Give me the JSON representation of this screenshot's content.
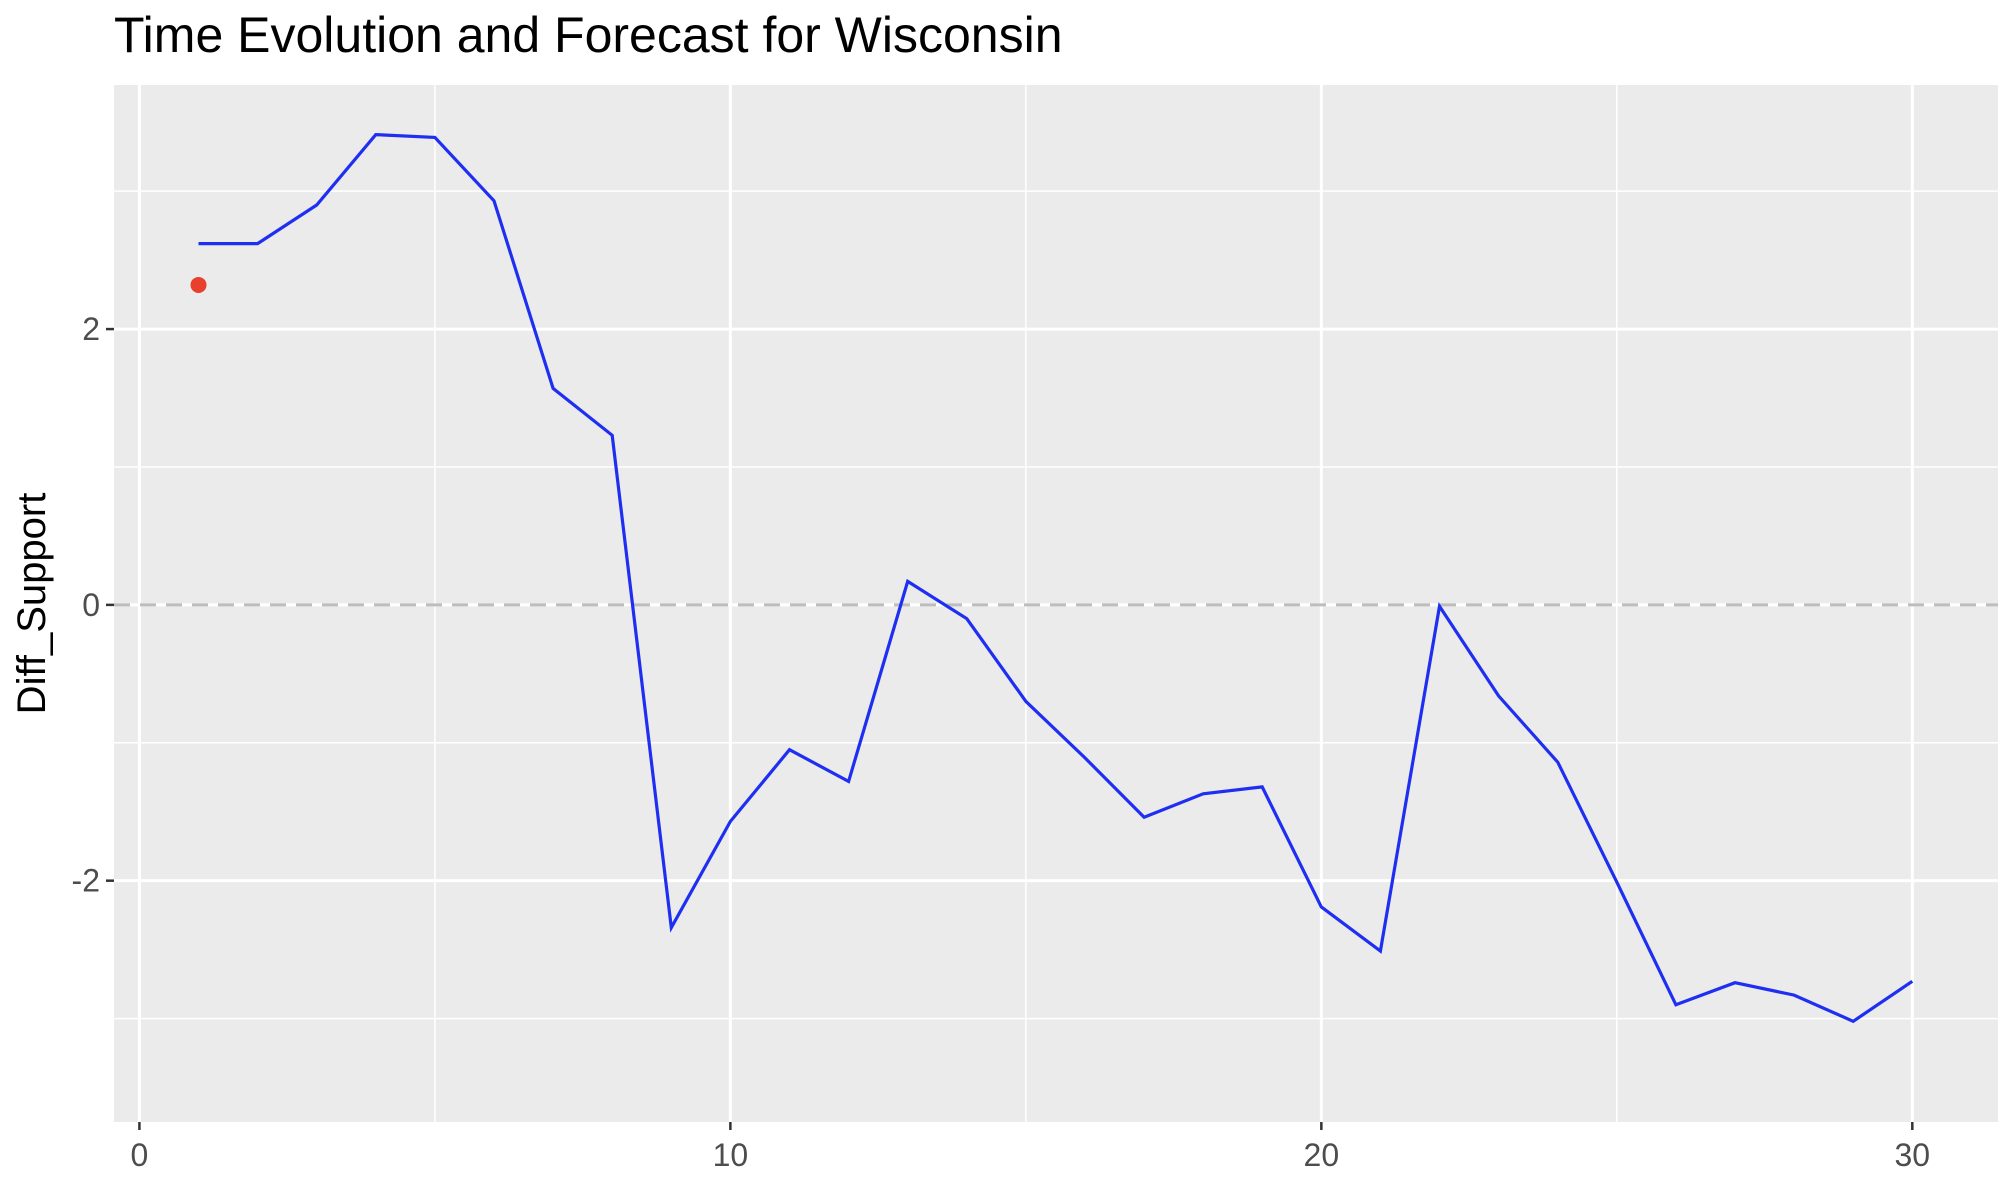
{
  "chart_data": {
    "type": "line",
    "title": "Time Evolution and Forecast for Wisconsin",
    "xlabel": "",
    "ylabel": "Diff_Support",
    "xlim": [
      -0.43,
      31.45
    ],
    "ylim": [
      -3.75,
      3.77
    ],
    "x_ticks": [
      0,
      10,
      20,
      30
    ],
    "y_ticks": [
      -2,
      0,
      2
    ],
    "grid": true,
    "legend": "none",
    "series": [
      {
        "color": "#1f2ff2",
        "x": [
          1,
          2,
          3,
          4,
          5,
          6,
          7,
          8,
          9,
          10,
          11,
          12,
          13,
          14,
          15,
          16,
          17,
          18,
          19,
          20,
          21,
          22,
          23,
          24,
          25,
          26,
          27,
          28,
          29,
          30
        ],
        "y": [
          2.62,
          2.62,
          2.9,
          3.41,
          3.39,
          2.93,
          1.57,
          1.23,
          -2.34,
          -1.57,
          -1.05,
          -1.28,
          0.17,
          -0.1,
          -0.7,
          -1.11,
          -1.54,
          -1.37,
          -1.32,
          -2.19,
          -2.51,
          -0.01,
          -0.66,
          -1.14,
          -2.01,
          -2.9,
          -2.74,
          -2.83,
          -3.02,
          -2.73
        ]
      }
    ],
    "points": [
      {
        "x": 1,
        "y": 2.32,
        "color": "#e8402c"
      }
    ],
    "reference_line": {
      "y": 0,
      "style": "dashed",
      "color": "#bdbdbd"
    },
    "panel_background": "#ebebeb",
    "grid_color": "#ffffff"
  }
}
